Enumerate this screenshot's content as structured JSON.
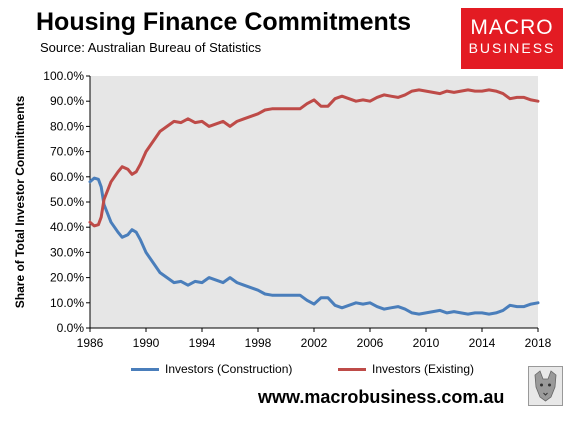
{
  "header": {
    "title": "Housing Finance Commitments",
    "source": "Source: Australian Bureau of Statistics"
  },
  "logo": {
    "line1": "MACRO",
    "line2": "BUSINESS",
    "color": "#e31b23"
  },
  "footer": {
    "url": "www.macrobusiness.com.au"
  },
  "chart_data": {
    "type": "line",
    "title": "Housing Finance Commitments",
    "subtitle": "Source: Australian Bureau of Statistics",
    "xlabel": "",
    "ylabel": "Share of Total Investor Commitments",
    "xlim": [
      1986,
      2018
    ],
    "ylim": [
      0,
      100
    ],
    "x_ticks": [
      "1986",
      "1990",
      "1994",
      "1998",
      "2002",
      "2006",
      "2010",
      "2014",
      "2018"
    ],
    "y_ticks": [
      "0.0%",
      "10.0%",
      "20.0%",
      "30.0%",
      "40.0%",
      "50.0%",
      "60.0%",
      "70.0%",
      "80.0%",
      "90.0%",
      "100.0%"
    ],
    "grid": false,
    "legend": "bottom",
    "series": [
      {
        "name": "Investors (Construction)",
        "color": "#4a7ebb",
        "x": [
          1986,
          1986.3,
          1986.6,
          1986.8,
          1987,
          1987.5,
          1988,
          1988.3,
          1988.7,
          1989,
          1989.3,
          1989.6,
          1990,
          1990.5,
          1991,
          1991.5,
          1992,
          1992.5,
          1993,
          1993.5,
          1994,
          1994.5,
          1995,
          1995.5,
          1996,
          1996.5,
          1997,
          1997.5,
          1998,
          1998.5,
          1999,
          1999.5,
          2000,
          2000.5,
          2001,
          2001.5,
          2002,
          2002.5,
          2003,
          2003.5,
          2004,
          2004.5,
          2005,
          2005.5,
          2006,
          2006.5,
          2007,
          2007.5,
          2008,
          2008.5,
          2009,
          2009.5,
          2010,
          2010.5,
          2011,
          2011.5,
          2012,
          2012.5,
          2013,
          2013.5,
          2014,
          2014.5,
          2015,
          2015.5,
          2016,
          2016.5,
          2017,
          2017.5,
          2018
        ],
        "values": [
          58,
          59.5,
          59,
          56,
          49,
          42,
          38,
          36,
          37,
          39,
          38,
          35,
          30,
          26,
          22,
          20,
          18,
          18.5,
          17,
          18.5,
          18,
          20,
          19,
          18,
          20,
          18,
          17,
          16,
          15,
          13.5,
          13,
          13,
          13,
          13,
          13,
          11,
          9.5,
          12,
          12,
          9,
          8,
          9,
          10,
          9.5,
          10,
          8.5,
          7.5,
          8,
          8.5,
          7.5,
          6,
          5.5,
          6,
          6.5,
          7,
          6,
          6.5,
          6,
          5.5,
          6,
          6,
          5.5,
          6,
          7,
          9,
          8.5,
          8.5,
          9.5,
          10
        ]
      },
      {
        "name": "Investors (Existing)",
        "color": "#be4b48",
        "x": [
          1986,
          1986.3,
          1986.6,
          1986.8,
          1987,
          1987.5,
          1988,
          1988.3,
          1988.7,
          1989,
          1989.3,
          1989.6,
          1990,
          1990.5,
          1991,
          1991.5,
          1992,
          1992.5,
          1993,
          1993.5,
          1994,
          1994.5,
          1995,
          1995.5,
          1996,
          1996.5,
          1997,
          1997.5,
          1998,
          1998.5,
          1999,
          1999.5,
          2000,
          2000.5,
          2001,
          2001.5,
          2002,
          2002.5,
          2003,
          2003.5,
          2004,
          2004.5,
          2005,
          2005.5,
          2006,
          2006.5,
          2007,
          2007.5,
          2008,
          2008.5,
          2009,
          2009.5,
          2010,
          2010.5,
          2011,
          2011.5,
          2012,
          2012.5,
          2013,
          2013.5,
          2014,
          2014.5,
          2015,
          2015.5,
          2016,
          2016.5,
          2017,
          2017.5,
          2018
        ],
        "values": [
          42,
          40.5,
          41,
          44,
          51,
          58,
          62,
          64,
          63,
          61,
          62,
          65,
          70,
          74,
          78,
          80,
          82,
          81.5,
          83,
          81.5,
          82,
          80,
          81,
          82,
          80,
          82,
          83,
          84,
          85,
          86.5,
          87,
          87,
          87,
          87,
          87,
          89,
          90.5,
          88,
          88,
          91,
          92,
          91,
          90,
          90.5,
          90,
          91.5,
          92.5,
          92,
          91.5,
          92.5,
          94,
          94.5,
          94,
          93.5,
          93,
          94,
          93.5,
          94,
          94.5,
          94,
          94,
          94.5,
          94,
          93,
          91,
          91.5,
          91.5,
          90.5,
          90
        ]
      }
    ]
  }
}
